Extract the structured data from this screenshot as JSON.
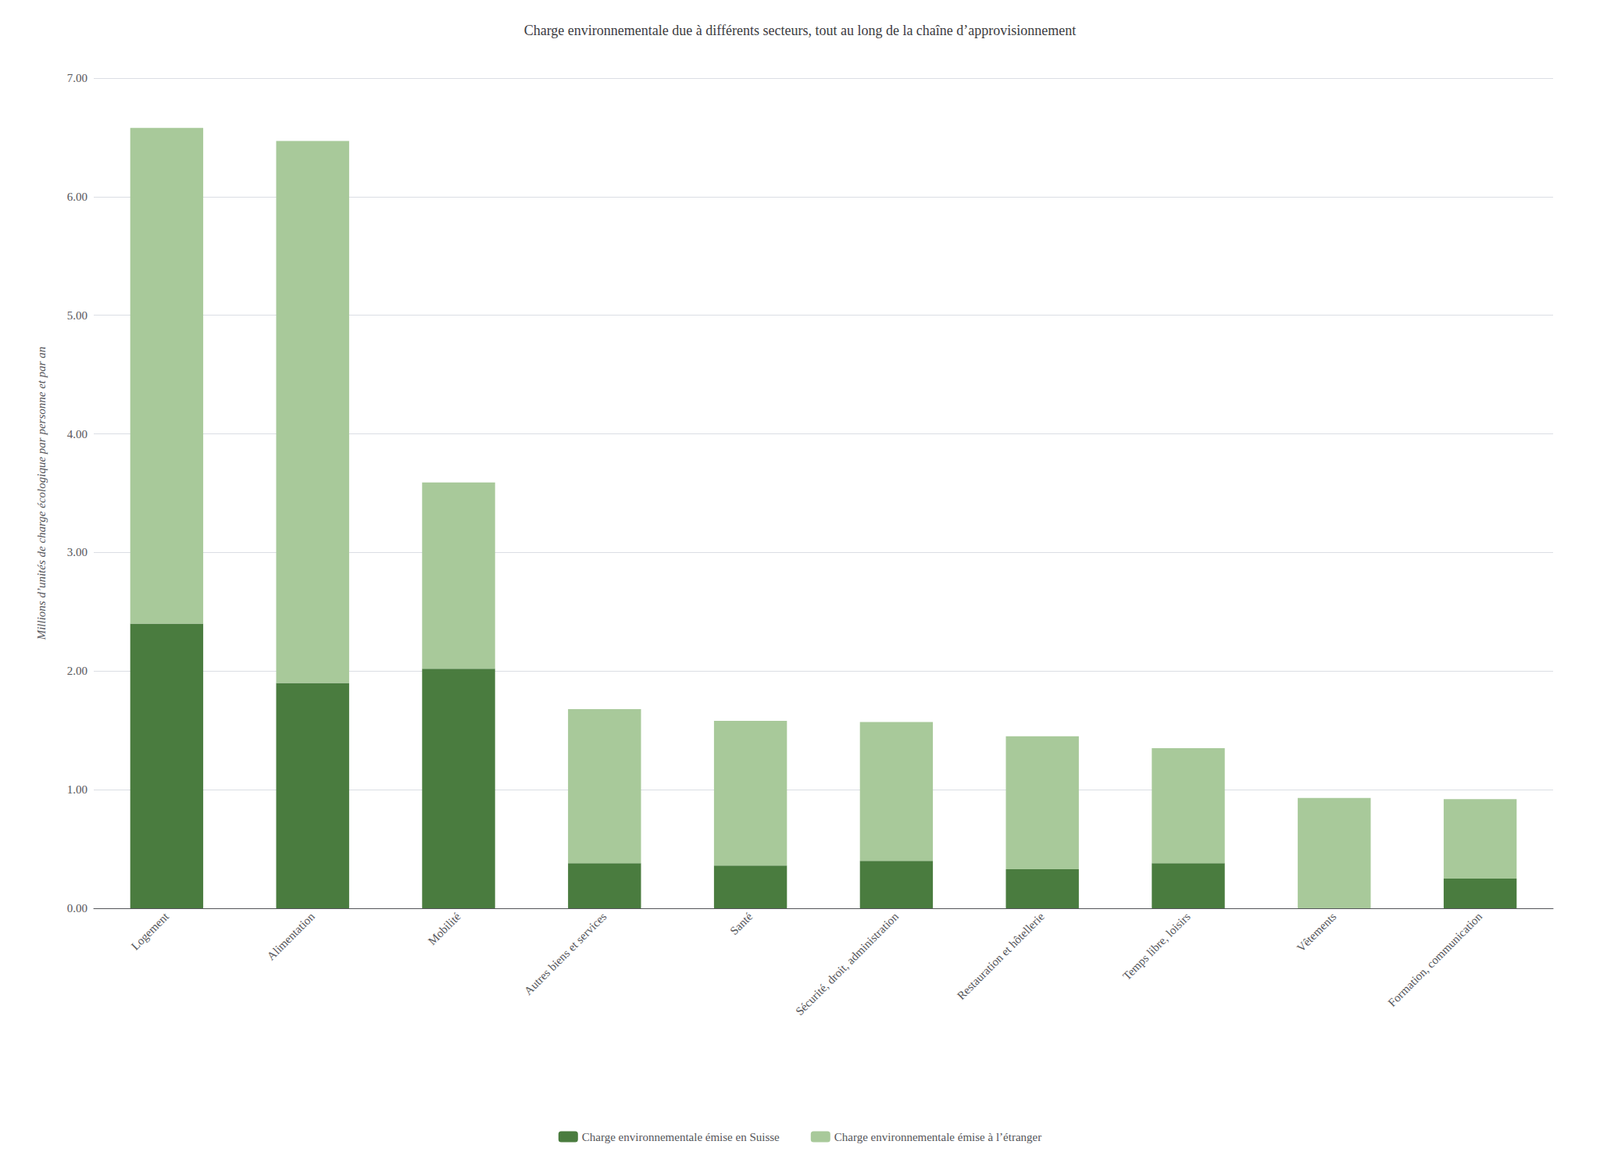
{
  "chart_data": {
    "type": "bar",
    "stacked": true,
    "title": "Charge environnementale due à différents secteurs, tout au long de la chaîne d’approvisionnement",
    "ylabel": "Millions d’unités de charge écologique par personne et par an",
    "categories": [
      "Logement",
      "Alimentation",
      "Mobilité",
      "Autres biens et services",
      "Santé",
      "Sécurité, droit, administration",
      "Restauration et hôtellerie",
      "Temps libre, loisirs",
      "Vêtements",
      "Formation, communication"
    ],
    "series": [
      {
        "name": "Charge environnementale émise en Suisse",
        "color": "#4a7c3f",
        "values": [
          2.4,
          1.9,
          2.02,
          0.38,
          0.36,
          0.4,
          0.33,
          0.38,
          0.0,
          0.25
        ]
      },
      {
        "name": "Charge environnementale émise à l’étranger",
        "color": "#a8c99a",
        "values": [
          4.18,
          4.57,
          1.57,
          1.3,
          1.22,
          1.17,
          1.12,
          0.97,
          0.93,
          0.67
        ]
      }
    ],
    "ylim": [
      0,
      7.0
    ],
    "yticks": [
      {
        "value": 0.0,
        "label": "0.00"
      },
      {
        "value": 1.0,
        "label": "1.00"
      },
      {
        "value": 2.0,
        "label": "2.00"
      },
      {
        "value": 3.0,
        "label": "3.00"
      },
      {
        "value": 4.0,
        "label": "4.00"
      },
      {
        "value": 5.0,
        "label": "5.00"
      },
      {
        "value": 6.0,
        "label": "6.00"
      },
      {
        "value": 7.0,
        "label": "7.00"
      }
    ],
    "grid": true,
    "legend": "bottom"
  }
}
